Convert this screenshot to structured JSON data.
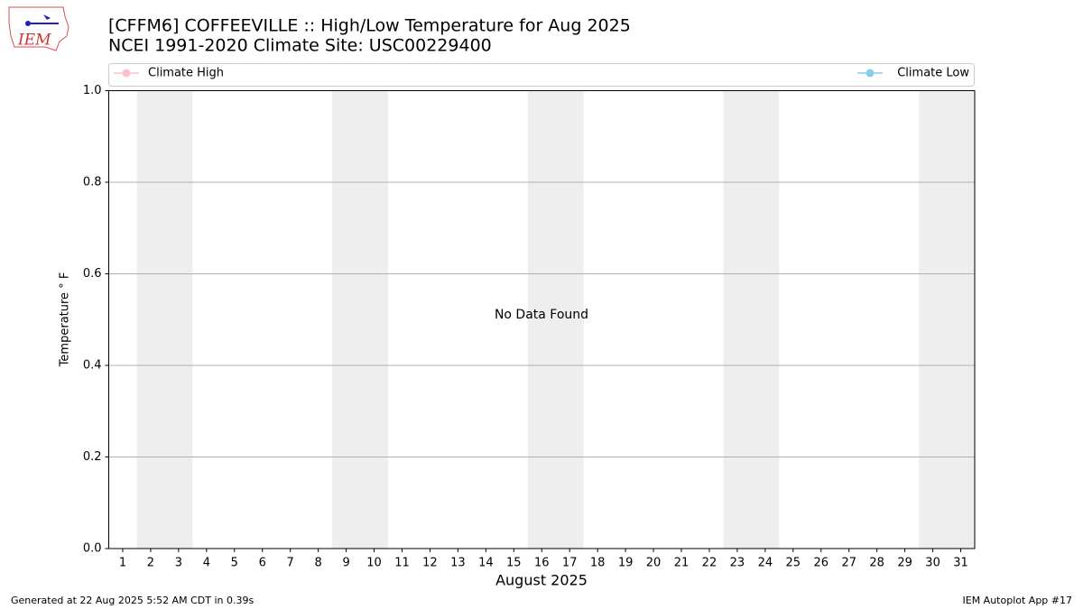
{
  "chart_data": {
    "type": "line",
    "title": "[CFFM6] COFFEEVILLE :: High/Low Temperature for Aug 2025",
    "subtitle": "NCEI 1991-2020 Climate Site: USC00229400",
    "logo": "IEM",
    "x_label": "August 2025",
    "y_label": "Temperature ° F",
    "annotation": "No Data Found",
    "footer_left": "Generated at 22 Aug 2025 5:52 AM CDT in 0.39s",
    "footer_right": "IEM Autoplot App #17",
    "x": [
      1,
      2,
      3,
      4,
      5,
      6,
      7,
      8,
      9,
      10,
      11,
      12,
      13,
      14,
      15,
      16,
      17,
      18,
      19,
      20,
      21,
      22,
      23,
      24,
      25,
      26,
      27,
      28,
      29,
      30,
      31
    ],
    "xlim": [
      0.5,
      31.5
    ],
    "xticks": [
      1,
      2,
      3,
      4,
      5,
      6,
      7,
      8,
      9,
      10,
      11,
      12,
      13,
      14,
      15,
      16,
      17,
      18,
      19,
      20,
      21,
      22,
      23,
      24,
      25,
      26,
      27,
      28,
      29,
      30,
      31
    ],
    "ylim": [
      0,
      1
    ],
    "yticks": [
      {
        "value": 0,
        "label": "0.0"
      },
      0.2,
      0.4,
      0.6,
      0.8,
      {
        "value": 1,
        "label": "1.0"
      }
    ],
    "grid": true,
    "series": [
      {
        "name": "Climate High",
        "color": "#ffc0cb",
        "values": [
          null,
          null,
          null,
          null,
          null,
          null,
          null,
          null,
          null,
          null,
          null,
          null,
          null,
          null,
          null,
          null,
          null,
          null,
          null,
          null,
          null,
          null,
          null,
          null,
          null,
          null,
          null,
          null,
          null,
          null,
          null
        ]
      },
      {
        "name": "Climate Low",
        "color": "#87ceeb",
        "values": [
          null,
          null,
          null,
          null,
          null,
          null,
          null,
          null,
          null,
          null,
          null,
          null,
          null,
          null,
          null,
          null,
          null,
          null,
          null,
          null,
          null,
          null,
          null,
          null,
          null,
          null,
          null,
          null,
          null,
          null,
          null
        ]
      }
    ]
  }
}
